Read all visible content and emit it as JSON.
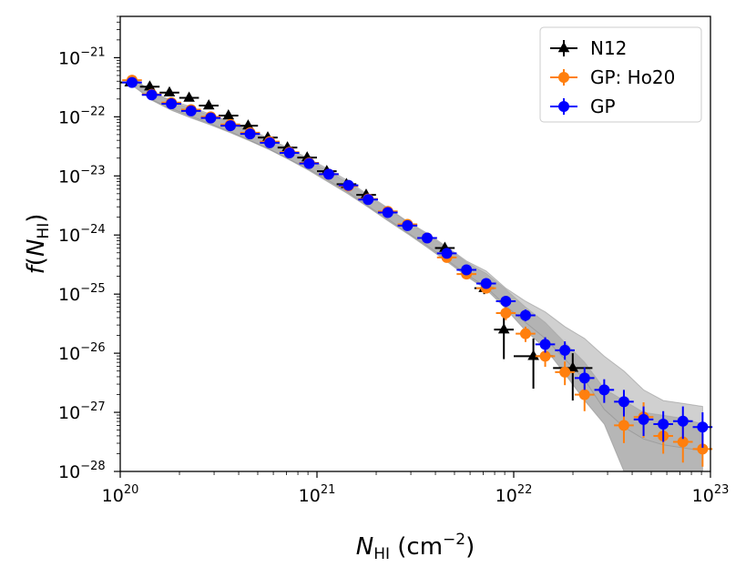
{
  "chart_data": {
    "type": "scatter",
    "xscale": "log",
    "yscale": "log",
    "xlim": [
      1e+20,
      1e+23
    ],
    "ylim": [
      1e-28,
      5e-21
    ],
    "grid": false,
    "legend_position": "top-right",
    "xlabel": {
      "var": "N",
      "sub": "HI",
      "unit": " (cm",
      "unit_sup": "−2",
      "unit_close": ")"
    },
    "ylabel": {
      "func": "f",
      "open": "(",
      "var": "N",
      "sub": "HI",
      "close": ")"
    },
    "x_ticks": [
      {
        "value": 1e+20,
        "base": "10",
        "exp": "20"
      },
      {
        "value": 1e+21,
        "base": "10",
        "exp": "21"
      },
      {
        "value": 1e+22,
        "base": "10",
        "exp": "22"
      },
      {
        "value": 1e+23,
        "base": "10",
        "exp": "23"
      }
    ],
    "y_ticks": [
      {
        "value": 1e-28,
        "base": "10",
        "exp": "−28"
      },
      {
        "value": 1e-27,
        "base": "10",
        "exp": "−27"
      },
      {
        "value": 1e-26,
        "base": "10",
        "exp": "−26"
      },
      {
        "value": 1e-25,
        "base": "10",
        "exp": "−25"
      },
      {
        "value": 1e-24,
        "base": "10",
        "exp": "−24"
      },
      {
        "value": 1e-23,
        "base": "10",
        "exp": "−23"
      },
      {
        "value": 1e-22,
        "base": "10",
        "exp": "−22"
      },
      {
        "value": 1e-21,
        "base": "10",
        "exp": "−21"
      }
    ],
    "bands": [
      {
        "name": "Ho20 uncertainty band",
        "color": "#7a7a7a",
        "opacity": 0.55,
        "x": [
          20.06,
          20.16,
          20.26,
          20.36,
          20.46,
          20.56,
          20.66,
          20.76,
          20.86,
          20.96,
          21.06,
          21.16,
          21.26,
          21.36,
          21.46,
          21.56,
          21.66,
          21.76,
          21.86,
          21.96,
          22.06,
          22.16,
          22.26,
          22.36,
          22.46,
          22.56,
          22.66,
          22.76,
          22.86,
          22.96
        ],
        "upper": [
          -21.32,
          -21.58,
          -21.74,
          -21.86,
          -21.98,
          -22.1,
          -22.24,
          -22.39,
          -22.56,
          -22.73,
          -22.92,
          -23.12,
          -23.34,
          -23.56,
          -23.78,
          -23.99,
          -24.22,
          -24.46,
          -24.65,
          -24.92,
          -25.22,
          -25.48,
          -25.82,
          -26.15,
          -26.6,
          -26.8,
          -27.0,
          -27.05,
          -27.1,
          -27.2
        ],
        "lower": [
          -21.45,
          -21.72,
          -21.89,
          -22.02,
          -22.14,
          -22.27,
          -22.41,
          -22.56,
          -22.73,
          -22.91,
          -23.11,
          -23.31,
          -23.53,
          -23.76,
          -23.98,
          -24.21,
          -24.45,
          -24.7,
          -24.92,
          -25.25,
          -25.62,
          -25.92,
          -26.35,
          -26.8,
          -27.2,
          -28.0,
          -28.0,
          -28.0,
          -28.0,
          -28.0
        ]
      },
      {
        "name": "GP uncertainty band",
        "color": "#b0b0b0",
        "opacity": 0.6,
        "x": [
          20.06,
          20.16,
          20.26,
          20.36,
          20.46,
          20.56,
          20.66,
          20.76,
          20.86,
          20.96,
          21.06,
          21.16,
          21.26,
          21.36,
          21.46,
          21.56,
          21.66,
          21.76,
          21.86,
          21.96,
          22.06,
          22.16,
          22.26,
          22.36,
          22.46,
          22.56,
          22.66,
          22.76,
          22.86,
          22.96
        ],
        "upper": [
          -21.35,
          -21.58,
          -21.72,
          -21.83,
          -21.96,
          -22.08,
          -22.22,
          -22.37,
          -22.54,
          -22.71,
          -22.89,
          -23.09,
          -23.32,
          -23.54,
          -23.77,
          -23.97,
          -24.2,
          -24.44,
          -24.61,
          -24.9,
          -25.12,
          -25.3,
          -25.55,
          -25.75,
          -26.05,
          -26.3,
          -26.62,
          -26.8,
          -26.85,
          -26.9
        ],
        "lower": [
          -21.47,
          -21.71,
          -21.86,
          -21.99,
          -22.12,
          -22.25,
          -22.4,
          -22.55,
          -22.72,
          -22.89,
          -23.08,
          -23.28,
          -23.51,
          -23.73,
          -23.96,
          -24.18,
          -24.42,
          -24.67,
          -24.88,
          -25.2,
          -25.48,
          -25.75,
          -26.1,
          -26.45,
          -26.95,
          -27.25,
          -27.45,
          -27.55,
          -27.6,
          -27.65
        ]
      }
    ],
    "series": [
      {
        "name": "N12",
        "color": "#000000",
        "marker": "triangle",
        "points": [
          {
            "x": 20.05,
            "y": -21.42,
            "xerr": 0.05,
            "yup": 0.03,
            "ydn": 0.03
          },
          {
            "x": 20.15,
            "y": -21.49,
            "xerr": 0.05,
            "yup": 0.03,
            "ydn": 0.03
          },
          {
            "x": 20.25,
            "y": -21.59,
            "xerr": 0.05,
            "yup": 0.03,
            "ydn": 0.03
          },
          {
            "x": 20.35,
            "y": -21.68,
            "xerr": 0.05,
            "yup": 0.03,
            "ydn": 0.03
          },
          {
            "x": 20.45,
            "y": -21.81,
            "xerr": 0.05,
            "yup": 0.03,
            "ydn": 0.03
          },
          {
            "x": 20.55,
            "y": -21.98,
            "xerr": 0.05,
            "yup": 0.03,
            "ydn": 0.03
          },
          {
            "x": 20.65,
            "y": -22.15,
            "xerr": 0.05,
            "yup": 0.03,
            "ydn": 0.03
          },
          {
            "x": 20.75,
            "y": -22.35,
            "xerr": 0.05,
            "yup": 0.03,
            "ydn": 0.03
          },
          {
            "x": 20.85,
            "y": -22.52,
            "xerr": 0.05,
            "yup": 0.03,
            "ydn": 0.03
          },
          {
            "x": 20.95,
            "y": -22.69,
            "xerr": 0.05,
            "yup": 0.03,
            "ydn": 0.03
          },
          {
            "x": 21.05,
            "y": -22.92,
            "xerr": 0.05,
            "yup": 0.03,
            "ydn": 0.03
          },
          {
            "x": 21.15,
            "y": -23.14,
            "xerr": 0.05,
            "yup": 0.03,
            "ydn": 0.03
          },
          {
            "x": 21.25,
            "y": -23.32,
            "xerr": 0.05,
            "yup": 0.04,
            "ydn": 0.04
          },
          {
            "x": 21.65,
            "y": -24.22,
            "xerr": 0.05,
            "yup": 0.04,
            "ydn": 0.04
          },
          {
            "x": 21.85,
            "y": -24.9,
            "xerr": 0.05,
            "yup": 0.1,
            "ydn": 0.1
          },
          {
            "x": 21.95,
            "y": -25.6,
            "xerr": 0.05,
            "yup": 0.3,
            "ydn": 0.5
          },
          {
            "x": 22.1,
            "y": -26.05,
            "xerr": 0.1,
            "yup": 0.3,
            "ydn": 0.55
          },
          {
            "x": 22.3,
            "y": -26.25,
            "xerr": 0.1,
            "yup": 0.25,
            "ydn": 0.55
          }
        ]
      },
      {
        "name": "GP: Ho20",
        "color": "#ff7f0e",
        "marker": "circle",
        "points": [
          {
            "x": 20.06,
            "y": -21.38,
            "xerr": 0.05,
            "yup": 0.03,
            "ydn": 0.03
          },
          {
            "x": 20.16,
            "y": -21.62,
            "xerr": 0.05,
            "yup": 0.03,
            "ydn": 0.03
          },
          {
            "x": 20.26,
            "y": -21.76,
            "xerr": 0.05,
            "yup": 0.03,
            "ydn": 0.03
          },
          {
            "x": 20.36,
            "y": -21.88,
            "xerr": 0.05,
            "yup": 0.03,
            "ydn": 0.03
          },
          {
            "x": 20.46,
            "y": -22.0,
            "xerr": 0.05,
            "yup": 0.03,
            "ydn": 0.03
          },
          {
            "x": 20.56,
            "y": -22.13,
            "xerr": 0.05,
            "yup": 0.03,
            "ydn": 0.03
          },
          {
            "x": 20.66,
            "y": -22.27,
            "xerr": 0.05,
            "yup": 0.03,
            "ydn": 0.03
          },
          {
            "x": 20.76,
            "y": -22.42,
            "xerr": 0.05,
            "yup": 0.03,
            "ydn": 0.03
          },
          {
            "x": 20.86,
            "y": -22.6,
            "xerr": 0.05,
            "yup": 0.03,
            "ydn": 0.03
          },
          {
            "x": 20.96,
            "y": -22.78,
            "xerr": 0.05,
            "yup": 0.03,
            "ydn": 0.03
          },
          {
            "x": 21.06,
            "y": -22.97,
            "xerr": 0.05,
            "yup": 0.03,
            "ydn": 0.03
          },
          {
            "x": 21.16,
            "y": -23.17,
            "xerr": 0.05,
            "yup": 0.03,
            "ydn": 0.03
          },
          {
            "x": 21.26,
            "y": -23.39,
            "xerr": 0.05,
            "yup": 0.03,
            "ydn": 0.03
          },
          {
            "x": 21.36,
            "y": -23.6,
            "xerr": 0.05,
            "yup": 0.03,
            "ydn": 0.03
          },
          {
            "x": 21.46,
            "y": -23.82,
            "xerr": 0.05,
            "yup": 0.03,
            "ydn": 0.03
          },
          {
            "x": 21.56,
            "y": -24.05,
            "xerr": 0.05,
            "yup": 0.03,
            "ydn": 0.03
          },
          {
            "x": 21.66,
            "y": -24.38,
            "xerr": 0.05,
            "yup": 0.04,
            "ydn": 0.04
          },
          {
            "x": 21.76,
            "y": -24.66,
            "xerr": 0.05,
            "yup": 0.05,
            "ydn": 0.05
          },
          {
            "x": 21.86,
            "y": -24.9,
            "xerr": 0.05,
            "yup": 0.08,
            "ydn": 0.08
          },
          {
            "x": 21.96,
            "y": -25.32,
            "xerr": 0.05,
            "yup": 0.1,
            "ydn": 0.12
          },
          {
            "x": 22.06,
            "y": -25.67,
            "xerr": 0.05,
            "yup": 0.12,
            "ydn": 0.14
          },
          {
            "x": 22.16,
            "y": -26.05,
            "xerr": 0.05,
            "yup": 0.15,
            "ydn": 0.18
          },
          {
            "x": 22.26,
            "y": -26.32,
            "xerr": 0.05,
            "yup": 0.18,
            "ydn": 0.22
          },
          {
            "x": 22.36,
            "y": -26.7,
            "xerr": 0.05,
            "yup": 0.22,
            "ydn": 0.28
          },
          {
            "x": 22.56,
            "y": -27.22,
            "xerr": 0.05,
            "yup": 0.25,
            "ydn": 0.3
          },
          {
            "x": 22.66,
            "y": -27.08,
            "xerr": 0.05,
            "yup": 0.25,
            "ydn": 0.35
          },
          {
            "x": 22.76,
            "y": -27.4,
            "xerr": 0.05,
            "yup": 0.25,
            "ydn": 0.3
          },
          {
            "x": 22.86,
            "y": -27.5,
            "xerr": 0.05,
            "yup": 0.25,
            "ydn": 0.35
          },
          {
            "x": 22.96,
            "y": -27.62,
            "xerr": 0.05,
            "yup": 0.25,
            "ydn": 0.3
          }
        ]
      },
      {
        "name": "GP",
        "color": "#0000ff",
        "marker": "circle",
        "points": [
          {
            "x": 20.06,
            "y": -21.42,
            "xerr": 0.05,
            "yup": 0.03,
            "ydn": 0.03
          },
          {
            "x": 20.16,
            "y": -21.63,
            "xerr": 0.05,
            "yup": 0.03,
            "ydn": 0.03
          },
          {
            "x": 20.26,
            "y": -21.78,
            "xerr": 0.05,
            "yup": 0.03,
            "ydn": 0.03
          },
          {
            "x": 20.36,
            "y": -21.9,
            "xerr": 0.05,
            "yup": 0.03,
            "ydn": 0.03
          },
          {
            "x": 20.46,
            "y": -22.02,
            "xerr": 0.05,
            "yup": 0.03,
            "ydn": 0.03
          },
          {
            "x": 20.56,
            "y": -22.15,
            "xerr": 0.05,
            "yup": 0.03,
            "ydn": 0.03
          },
          {
            "x": 20.66,
            "y": -22.29,
            "xerr": 0.05,
            "yup": 0.03,
            "ydn": 0.03
          },
          {
            "x": 20.76,
            "y": -22.44,
            "xerr": 0.05,
            "yup": 0.03,
            "ydn": 0.03
          },
          {
            "x": 20.86,
            "y": -22.61,
            "xerr": 0.05,
            "yup": 0.03,
            "ydn": 0.03
          },
          {
            "x": 20.96,
            "y": -22.79,
            "xerr": 0.05,
            "yup": 0.03,
            "ydn": 0.03
          },
          {
            "x": 21.06,
            "y": -22.97,
            "xerr": 0.05,
            "yup": 0.03,
            "ydn": 0.03
          },
          {
            "x": 21.16,
            "y": -23.16,
            "xerr": 0.05,
            "yup": 0.03,
            "ydn": 0.03
          },
          {
            "x": 21.26,
            "y": -23.4,
            "xerr": 0.05,
            "yup": 0.03,
            "ydn": 0.03
          },
          {
            "x": 21.36,
            "y": -23.62,
            "xerr": 0.05,
            "yup": 0.03,
            "ydn": 0.03
          },
          {
            "x": 21.46,
            "y": -23.84,
            "xerr": 0.05,
            "yup": 0.03,
            "ydn": 0.03
          },
          {
            "x": 21.56,
            "y": -24.05,
            "xerr": 0.05,
            "yup": 0.03,
            "ydn": 0.03
          },
          {
            "x": 21.66,
            "y": -24.31,
            "xerr": 0.05,
            "yup": 0.04,
            "ydn": 0.04
          },
          {
            "x": 21.76,
            "y": -24.59,
            "xerr": 0.05,
            "yup": 0.05,
            "ydn": 0.05
          },
          {
            "x": 21.86,
            "y": -24.82,
            "xerr": 0.05,
            "yup": 0.08,
            "ydn": 0.08
          },
          {
            "x": 21.96,
            "y": -25.12,
            "xerr": 0.05,
            "yup": 0.08,
            "ydn": 0.1
          },
          {
            "x": 22.06,
            "y": -25.36,
            "xerr": 0.05,
            "yup": 0.1,
            "ydn": 0.1
          },
          {
            "x": 22.16,
            "y": -25.85,
            "xerr": 0.05,
            "yup": 0.12,
            "ydn": 0.14
          },
          {
            "x": 22.26,
            "y": -25.95,
            "xerr": 0.05,
            "yup": 0.15,
            "ydn": 0.16
          },
          {
            "x": 22.36,
            "y": -26.42,
            "xerr": 0.05,
            "yup": 0.18,
            "ydn": 0.2
          },
          {
            "x": 22.46,
            "y": -26.62,
            "xerr": 0.05,
            "yup": 0.18,
            "ydn": 0.22
          },
          {
            "x": 22.56,
            "y": -26.82,
            "xerr": 0.05,
            "yup": 0.2,
            "ydn": 0.25
          },
          {
            "x": 22.66,
            "y": -27.12,
            "xerr": 0.05,
            "yup": 0.22,
            "ydn": 0.28
          },
          {
            "x": 22.76,
            "y": -27.2,
            "xerr": 0.05,
            "yup": 0.22,
            "ydn": 0.3
          },
          {
            "x": 22.86,
            "y": -27.15,
            "xerr": 0.05,
            "yup": 0.25,
            "ydn": 0.3
          },
          {
            "x": 22.96,
            "y": -27.25,
            "xerr": 0.05,
            "yup": 0.25,
            "ydn": 0.35
          }
        ]
      }
    ],
    "legend": [
      {
        "label": "N12",
        "color": "#000000",
        "marker": "triangle"
      },
      {
        "label": "GP: Ho20",
        "color": "#ff7f0e",
        "marker": "circle"
      },
      {
        "label": "GP",
        "color": "#0000ff",
        "marker": "circle"
      }
    ]
  }
}
